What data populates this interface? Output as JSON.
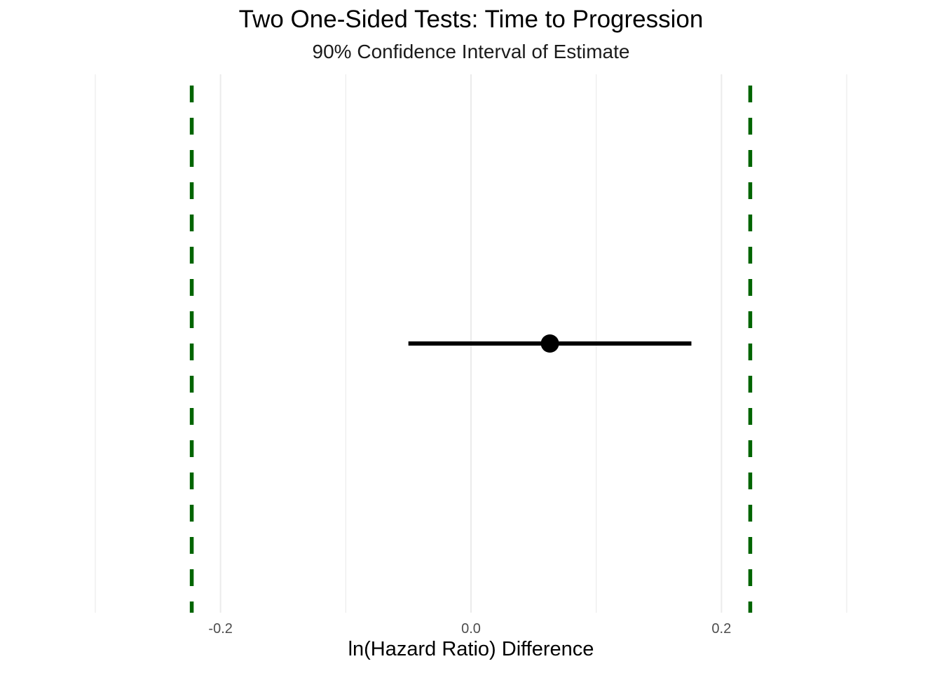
{
  "chart_data": {
    "type": "scatter",
    "title": "Two One-Sided Tests: Time to Progression",
    "subtitle": "90% Confidence Interval of Estimate",
    "xlabel": "ln(Hazard Ratio) Difference",
    "ylabel": "",
    "xlim": [
      -0.3,
      0.3
    ],
    "x_ticks": [
      -0.2,
      0.0,
      0.2
    ],
    "x_tick_labels": [
      "-0.2",
      "0.0",
      "0.2"
    ],
    "grid": true,
    "estimate": {
      "value": 0.063,
      "ci_lower": -0.05,
      "ci_upper": 0.176
    },
    "equivalence_bounds": [
      -0.223,
      0.223
    ],
    "colors": {
      "bounds": "#006400",
      "estimate": "#000000",
      "grid": "#ebebeb"
    }
  }
}
